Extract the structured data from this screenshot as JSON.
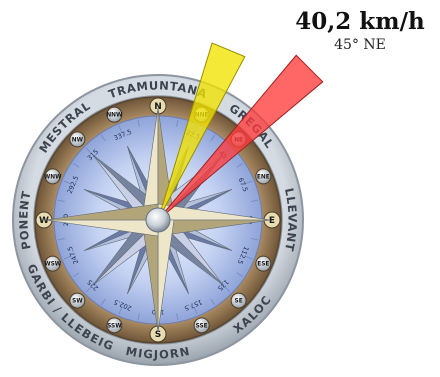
{
  "readout": {
    "speed": "40,2 km/h",
    "direction": "45° NE"
  },
  "wind": {
    "direction_deg": 45,
    "gust_direction_deg": 22.5
  },
  "colors": {
    "wind_arrow": "#ff3b3b",
    "gust_arrow": "#f2e300",
    "ring": "#b6bec8",
    "bezel": "#8d7250",
    "dial": "#b9c9ee"
  },
  "ring_labels": [
    {
      "text": "TRAMUNTANA",
      "angle": 0
    },
    {
      "text": "GREGAL",
      "angle": 45
    },
    {
      "text": "LLEVANT",
      "angle": 90
    },
    {
      "text": "XALOC",
      "angle": 135
    },
    {
      "text": "MIGJORN",
      "angle": 180
    },
    {
      "text": "GARBI / LLEBEIG",
      "angle": 225
    },
    {
      "text": "PONENT",
      "angle": 270
    },
    {
      "text": "MESTRAL",
      "angle": 315
    }
  ],
  "cardinals": [
    {
      "label": "N",
      "degree": "0",
      "angle": 0
    },
    {
      "label": "NNE",
      "degree": "22.5",
      "angle": 22.5
    },
    {
      "label": "NE",
      "degree": "45",
      "angle": 45
    },
    {
      "label": "ENE",
      "degree": "67.5",
      "angle": 67.5
    },
    {
      "label": "E",
      "degree": "90",
      "angle": 90
    },
    {
      "label": "ESE",
      "degree": "112.5",
      "angle": 112.5
    },
    {
      "label": "SE",
      "degree": "135",
      "angle": 135
    },
    {
      "label": "SSE",
      "degree": "157.5",
      "angle": 157.5
    },
    {
      "label": "S",
      "degree": "180",
      "angle": 180
    },
    {
      "label": "SSW",
      "degree": "202.5",
      "angle": 202.5
    },
    {
      "label": "SW",
      "degree": "225",
      "angle": 225
    },
    {
      "label": "WSW",
      "degree": "247.5",
      "angle": 247.5
    },
    {
      "label": "W",
      "degree": "270",
      "angle": 270
    },
    {
      "label": "WNW",
      "degree": "292.5",
      "angle": 292.5
    },
    {
      "label": "NW",
      "degree": "315",
      "angle": 315
    },
    {
      "label": "NNW",
      "degree": "337.5",
      "angle": 337.5
    }
  ]
}
